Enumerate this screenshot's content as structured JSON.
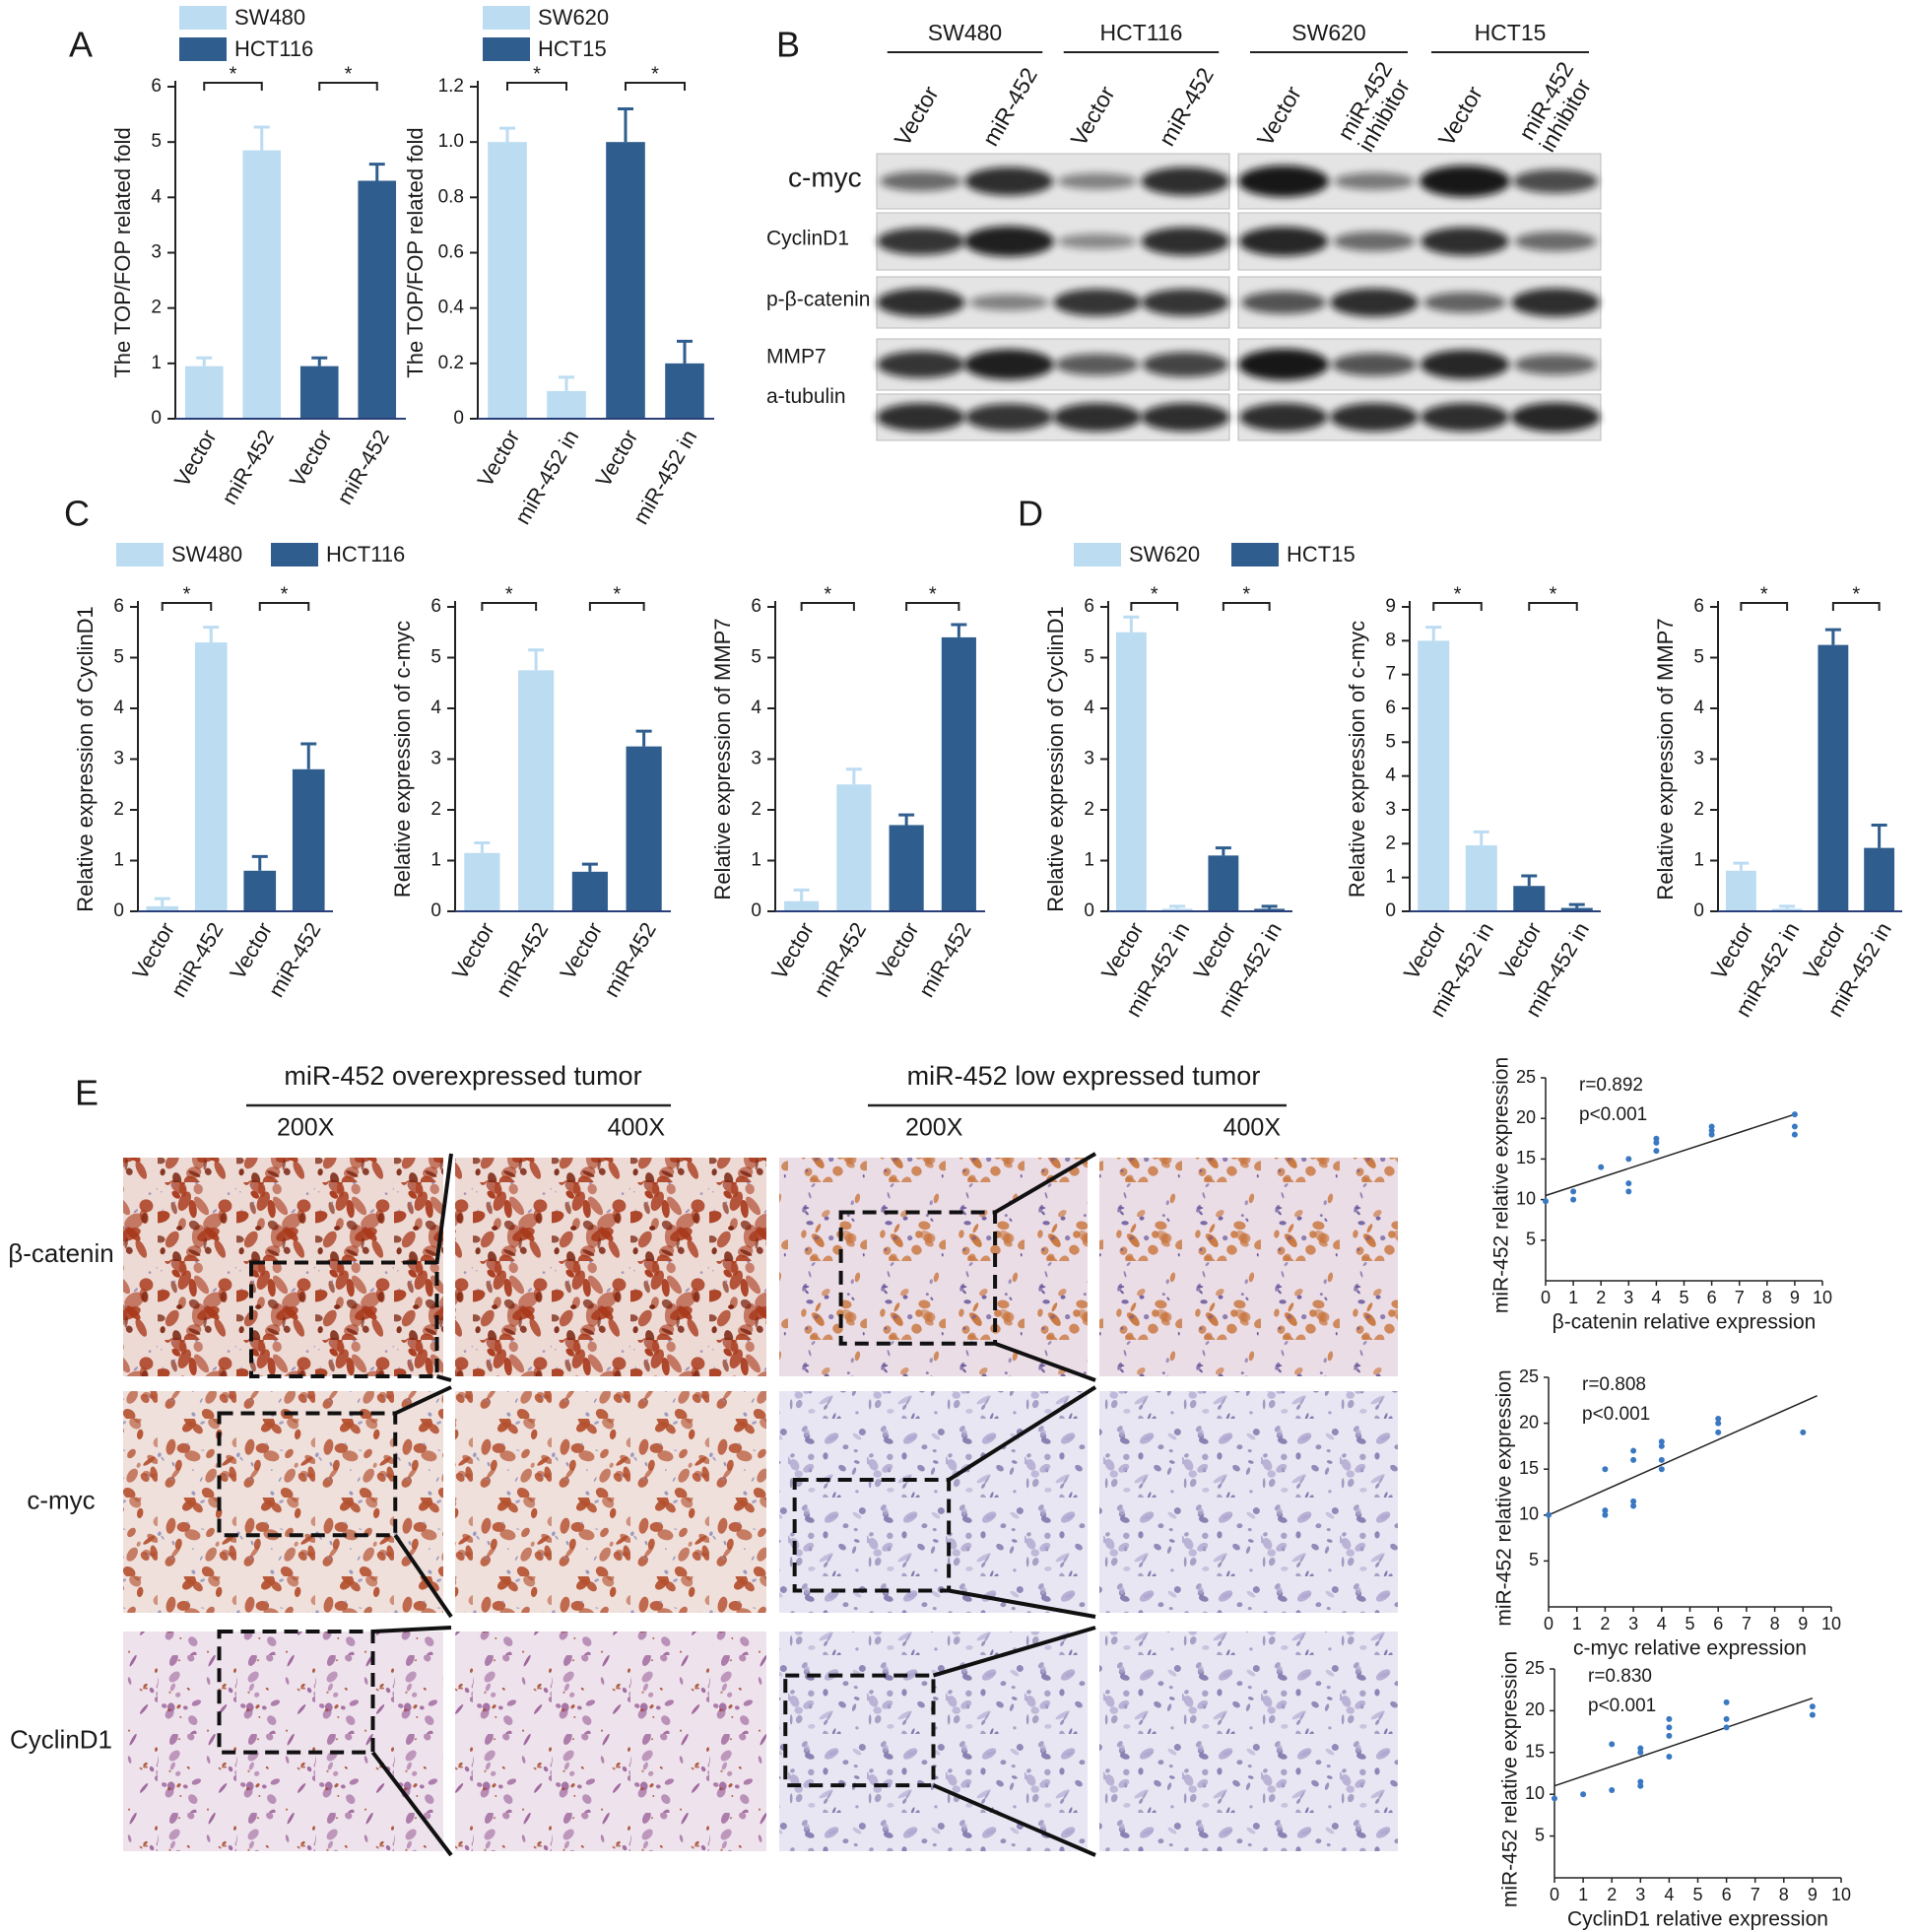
{
  "panel_labels": [
    "A",
    "B",
    "C",
    "D",
    "E"
  ],
  "chart_data": [
    {
      "type": "bar",
      "ylabel": "The TOP/FOP related fold",
      "categories": [
        "Vector",
        "miR-452",
        "Vector",
        "miR-452"
      ],
      "series": [
        {
          "name": "SW480",
          "color": "#bcdcf2",
          "values": [
            0.95,
            4.85,
            null,
            null
          ],
          "errors": [
            0.15,
            0.42,
            null,
            null
          ]
        },
        {
          "name": "HCT116",
          "color": "#2f5d8e",
          "values": [
            null,
            null,
            0.95,
            4.3
          ],
          "errors": [
            null,
            null,
            0.15,
            0.3
          ]
        }
      ],
      "ylim": [
        0,
        6
      ],
      "yticks": [
        0,
        1,
        2,
        3,
        4,
        5,
        6
      ],
      "annotations": [
        "*",
        "*"
      ]
    },
    {
      "type": "bar",
      "ylabel": "The TOP/FOP related fold",
      "categories": [
        "Vector",
        "miR-452 in",
        "Vector",
        "miR-452 in"
      ],
      "series": [
        {
          "name": "SW620",
          "color": "#bcdcf2",
          "values": [
            1.0,
            0.1,
            null,
            null
          ],
          "errors": [
            0.05,
            0.05,
            null,
            null
          ]
        },
        {
          "name": "HCT15",
          "color": "#2f5d8e",
          "values": [
            null,
            null,
            1.0,
            0.2
          ],
          "errors": [
            null,
            null,
            0.12,
            0.08
          ]
        }
      ],
      "ylim": [
        0,
        1.2
      ],
      "yticks": [
        0,
        0.2,
        0.4,
        0.6,
        0.8,
        {
          "value": 1,
          "label": "1.0"
        },
        1.2
      ],
      "annotations": [
        "*",
        "*"
      ]
    },
    {
      "type": "bar",
      "ylabel": "Relative expression of CyclinD1",
      "categories": [
        "Vector",
        "miR-452",
        "Vector",
        "miR-452"
      ],
      "series": [
        {
          "name": "SW480",
          "color": "#bcdcf2",
          "values": [
            0.1,
            5.3,
            null,
            null
          ],
          "errors": [
            0.15,
            0.3,
            null,
            null
          ]
        },
        {
          "name": "HCT116",
          "color": "#2f5d8e",
          "values": [
            null,
            null,
            0.8,
            2.8
          ],
          "errors": [
            null,
            null,
            0.28,
            0.5
          ]
        }
      ],
      "ylim": [
        0,
        6
      ],
      "yticks": [
        0,
        1,
        2,
        3,
        4,
        5,
        6
      ],
      "annotations": [
        "*",
        "*"
      ]
    },
    {
      "type": "bar",
      "ylabel": "Relative expression of c-myc",
      "categories": [
        "Vector",
        "miR-452",
        "Vector",
        "miR-452"
      ],
      "series": [
        {
          "color": "#bcdcf2",
          "values": [
            1.15,
            4.75,
            null,
            null
          ],
          "errors": [
            0.2,
            0.4,
            null,
            null
          ]
        },
        {
          "color": "#2f5d8e",
          "values": [
            null,
            null,
            0.78,
            3.25
          ],
          "errors": [
            null,
            null,
            0.15,
            0.3
          ]
        }
      ],
      "ylim": [
        0,
        6
      ],
      "yticks": [
        0,
        1,
        2,
        3,
        4,
        5,
        6
      ],
      "annotations": [
        "*",
        "*"
      ]
    },
    {
      "type": "bar",
      "ylabel": "Relative expression of MMP7",
      "categories": [
        "Vector",
        "miR-452",
        "Vector",
        "miR-452"
      ],
      "series": [
        {
          "color": "#bcdcf2",
          "values": [
            0.2,
            2.5,
            null,
            null
          ],
          "errors": [
            0.22,
            0.3,
            null,
            null
          ]
        },
        {
          "color": "#2f5d8e",
          "values": [
            null,
            null,
            1.7,
            5.4
          ],
          "errors": [
            null,
            null,
            0.2,
            0.25
          ]
        }
      ],
      "ylim": [
        0,
        6
      ],
      "yticks": [
        0,
        1,
        2,
        3,
        4,
        5,
        6
      ],
      "annotations": [
        "*",
        "*"
      ]
    },
    {
      "type": "bar",
      "ylabel": "Relative expression of CyclinD1",
      "categories": [
        "Vector",
        "miR-452 in",
        "Vector",
        "miR-452 in"
      ],
      "series": [
        {
          "name": "SW620",
          "color": "#bcdcf2",
          "values": [
            5.5,
            0.05,
            null,
            null
          ],
          "errors": [
            0.3,
            0.05,
            null,
            null
          ]
        },
        {
          "name": "HCT15",
          "color": "#2f5d8e",
          "values": [
            null,
            null,
            1.1,
            0.05
          ],
          "errors": [
            null,
            null,
            0.15,
            0.05
          ]
        }
      ],
      "ylim": [
        0,
        6
      ],
      "yticks": [
        0,
        1,
        2,
        3,
        4,
        5,
        6
      ],
      "annotations": [
        "*",
        "*"
      ]
    },
    {
      "type": "bar",
      "ylabel": "Relative expression of c-myc",
      "categories": [
        "Vector",
        "miR-452 in",
        "Vector",
        "miR-452 in"
      ],
      "series": [
        {
          "color": "#bcdcf2",
          "values": [
            8.0,
            1.95,
            null,
            null
          ],
          "errors": [
            0.4,
            0.4,
            null,
            null
          ]
        },
        {
          "color": "#2f5d8e",
          "values": [
            null,
            null,
            0.75,
            0.1
          ],
          "errors": [
            null,
            null,
            0.3,
            0.1
          ]
        }
      ],
      "ylim": [
        0,
        9
      ],
      "yticks": [
        0,
        1,
        2,
        3,
        4,
        5,
        6,
        7,
        8,
        9
      ],
      "annotations": [
        "*",
        "*"
      ]
    },
    {
      "type": "bar",
      "ylabel": "Relative expression of MMP7",
      "categories": [
        "Vector",
        "miR-452 in",
        "Vector",
        "miR-452 in"
      ],
      "series": [
        {
          "color": "#bcdcf2",
          "values": [
            0.8,
            0.05,
            null,
            null
          ],
          "errors": [
            0.15,
            0.05,
            null,
            null
          ]
        },
        {
          "color": "#2f5d8e",
          "values": [
            null,
            null,
            5.25,
            1.25
          ],
          "errors": [
            null,
            null,
            0.3,
            0.45
          ]
        }
      ],
      "ylim": [
        0,
        6
      ],
      "yticks": [
        0,
        1,
        2,
        3,
        4,
        5,
        6
      ],
      "annotations": [
        "*",
        "*"
      ]
    },
    {
      "type": "scatter",
      "xlabel": "β-catenin relative expression",
      "ylabel": "miR-452 relative expression",
      "color": "#3a78c2",
      "x": [
        0,
        1,
        1,
        2,
        3,
        3,
        3,
        4,
        4,
        4,
        6,
        6,
        6,
        9,
        9,
        9
      ],
      "values": [
        9.8,
        10,
        11,
        14,
        11,
        12,
        15,
        16,
        17,
        17.5,
        18,
        19,
        18.5,
        18,
        19,
        20.5
      ],
      "trendline": {
        "x": [
          0,
          9
        ],
        "values": [
          10.5,
          20.5
        ]
      },
      "xlim": [
        0,
        10
      ],
      "xticks": [
        0,
        1,
        2,
        3,
        4,
        5,
        6,
        7,
        8,
        9,
        10
      ],
      "ylim": [
        0,
        25
      ],
      "yticks": [
        5,
        10,
        15,
        20,
        25
      ],
      "annotations": [
        "r=0.892",
        "p<0.001"
      ]
    },
    {
      "type": "scatter",
      "xlabel": "c-myc relative expression",
      "ylabel": "miR-452 relative expression",
      "color": "#3a78c2",
      "x": [
        0,
        2,
        2,
        2,
        3,
        3,
        3,
        3,
        4,
        4,
        4,
        4,
        6,
        6,
        6,
        9
      ],
      "values": [
        10,
        10,
        10.5,
        15,
        11,
        11.5,
        16,
        17,
        15,
        16,
        17.5,
        18,
        19,
        20,
        20.5,
        19
      ],
      "trendline": {
        "x": [
          0,
          9.5
        ],
        "values": [
          10,
          23
        ]
      },
      "xlim": [
        0,
        10
      ],
      "xticks": [
        0,
        1,
        2,
        3,
        4,
        5,
        6,
        7,
        8,
        9,
        10
      ],
      "ylim": [
        0,
        25
      ],
      "yticks": [
        5,
        10,
        15,
        20,
        25
      ],
      "annotations": [
        "r=0.808",
        "p<0.001"
      ]
    },
    {
      "type": "scatter",
      "xlabel": "CyclinD1 relative expression",
      "ylabel": "miR-452 relative expression",
      "color": "#3a78c2",
      "x": [
        0,
        1,
        2,
        2,
        3,
        3,
        3,
        3,
        4,
        4,
        4,
        4,
        6,
        6,
        6,
        9,
        9
      ],
      "values": [
        9.5,
        10,
        10.5,
        16,
        11,
        11.5,
        15,
        15.5,
        14.5,
        17,
        18,
        19,
        18,
        19,
        21,
        19.5,
        20.5
      ],
      "trendline": {
        "x": [
          0,
          9
        ],
        "values": [
          11,
          21.5
        ]
      },
      "xlim": [
        0,
        10
      ],
      "xticks": [
        0,
        1,
        2,
        3,
        4,
        5,
        6,
        7,
        8,
        9,
        10
      ],
      "ylim": [
        0,
        25
      ],
      "yticks": [
        5,
        10,
        15,
        20,
        25
      ],
      "annotations": [
        "r=0.830",
        "p<0.001"
      ]
    }
  ],
  "blot": {
    "groups": [
      {
        "label": "SW480",
        "lanes": [
          "Vector",
          "miR-452"
        ]
      },
      {
        "label": "HCT116",
        "lanes": [
          "Vector",
          "miR-452"
        ]
      },
      {
        "label": "SW620",
        "lanes": [
          "Vector",
          "miR-452 inhibitor"
        ]
      },
      {
        "label": "HCT15",
        "lanes": [
          "Vector",
          "miR-452 inhibitor"
        ]
      }
    ],
    "rows": [
      "c-myc",
      "CyclinD1",
      "p-β-catenin",
      "MMP7",
      "a-tubulin"
    ]
  },
  "ihc": {
    "groups": [
      {
        "title": "miR-452 overexpressed tumor",
        "magnifications": [
          "200X",
          "400X"
        ]
      },
      {
        "title": "miR-452 low expressed tumor",
        "magnifications": [
          "200X",
          "400X"
        ]
      }
    ],
    "rows": [
      "β-catenin",
      "c-myc",
      "CyclinD1"
    ]
  }
}
